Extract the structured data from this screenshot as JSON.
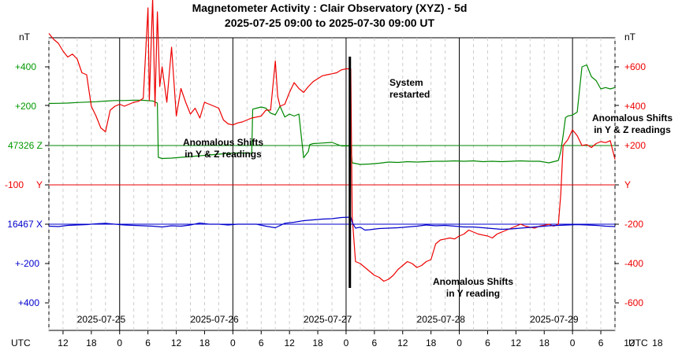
{
  "chart_data": {
    "type": "line",
    "title": "Magnetometer Activity : Clair Observatory (XYZ) - 5d",
    "subtitle": "2025-07-25 09:00 to 2025-07-30 09:00 UT",
    "x_start": "2025-07-25 09:00",
    "x_end": "2025-07-30 09:00",
    "left_unit": "nT",
    "right_unit": "nT",
    "utc_label": "UTC",
    "left_labels": [
      {
        "text": "+400",
        "color": "#009900"
      },
      {
        "text": "+200",
        "color": "#009900"
      },
      {
        "text": "47326 Z",
        "color": "#009900"
      },
      {
        "text": "-100",
        "color": "#ee0000"
      },
      {
        "text": "Y",
        "color": "#ee0000"
      },
      {
        "text": "16467 X",
        "color": "#0000cc"
      },
      {
        "text": "+-200",
        "color": "#0000cc"
      },
      {
        "text": "+400",
        "color": "#0000cc"
      }
    ],
    "right_labels": [
      {
        "text": "+600",
        "color": "#ee0000"
      },
      {
        "text": "+400",
        "color": "#ee0000"
      },
      {
        "text": "+200",
        "color": "#ee0000"
      },
      {
        "text": "Y",
        "color": "#ee0000"
      },
      {
        "text": "-200",
        "color": "#ee0000"
      },
      {
        "text": "-400",
        "color": "#ee0000"
      },
      {
        "text": "-600",
        "color": "#ee0000"
      }
    ],
    "hour_ticks": [
      "12",
      "18",
      "0",
      "6",
      "12",
      "18",
      "0",
      "6",
      "12",
      "18",
      "0",
      "6",
      "12",
      "18",
      "0",
      "6",
      "12",
      "18",
      "0",
      "6",
      "12",
      "18",
      "0",
      "6"
    ],
    "date_labels": [
      "2025-07-25",
      "2025-07-26",
      "2025-07-27",
      "2025-07-28",
      "2025-07-29"
    ],
    "colors": {
      "Z": "#008800",
      "Y": "#ee0000",
      "X": "#0000cc"
    },
    "grid": true,
    "annotations": [
      {
        "text": [
          "Anomalous Shifts",
          "in Y & Z readings"
        ]
      },
      {
        "text": [
          "System",
          "restarted"
        ]
      },
      {
        "text": [
          "Anomalous Shifts",
          "in Y reading"
        ]
      },
      {
        "text": [
          "Anomalous Shifts",
          "in Y & Z readings"
        ]
      }
    ],
    "series": [
      {
        "name": "Z",
        "color": "#008800",
        "points": [
          [
            0,
            214
          ],
          [
            2,
            215
          ],
          [
            4,
            216
          ],
          [
            6,
            219
          ],
          [
            8,
            221
          ],
          [
            10,
            223
          ],
          [
            12,
            226
          ],
          [
            14,
            229
          ],
          [
            16,
            229
          ],
          [
            18,
            231
          ],
          [
            20,
            230
          ],
          [
            22,
            227
          ],
          [
            23,
            216
          ],
          [
            23.2,
            -60
          ],
          [
            24,
            -66
          ],
          [
            26,
            -64
          ],
          [
            28,
            -60
          ],
          [
            30,
            -56
          ],
          [
            32,
            -52
          ],
          [
            34,
            -48
          ],
          [
            36,
            -44
          ],
          [
            38,
            -40
          ],
          [
            40,
            -38
          ],
          [
            42,
            -38
          ],
          [
            43,
            -40
          ],
          [
            43.2,
            185
          ],
          [
            44,
            190
          ],
          [
            45,
            196
          ],
          [
            46,
            190
          ],
          [
            47,
            165
          ],
          [
            48,
            156
          ],
          [
            49,
            200
          ],
          [
            50,
            145
          ],
          [
            51,
            160
          ],
          [
            52,
            150
          ],
          [
            53,
            160
          ],
          [
            54,
            -62
          ],
          [
            55,
            -30
          ],
          [
            55.3,
            5
          ],
          [
            56,
            10
          ],
          [
            58,
            13
          ],
          [
            60,
            16
          ],
          [
            62,
            -2
          ],
          [
            63,
            -2
          ],
          [
            64,
            -2
          ],
          [
            64.3,
            -88
          ],
          [
            66,
            -96
          ],
          [
            68,
            -94
          ],
          [
            70,
            -90
          ],
          [
            72,
            -84
          ],
          [
            74,
            -86
          ],
          [
            76,
            -82
          ],
          [
            78,
            -84
          ],
          [
            80,
            -82
          ],
          [
            82,
            -80
          ],
          [
            84,
            -80
          ],
          [
            86,
            -78
          ],
          [
            88,
            -80
          ],
          [
            90,
            -78
          ],
          [
            92,
            -82
          ],
          [
            94,
            -80
          ],
          [
            96,
            -82
          ],
          [
            98,
            -80
          ],
          [
            100,
            -78
          ],
          [
            102,
            -80
          ],
          [
            104,
            -80
          ],
          [
            106,
            -88
          ],
          [
            108,
            -76
          ],
          [
            108.5,
            -30
          ],
          [
            109,
            50
          ],
          [
            109.5,
            142
          ],
          [
            110,
            150
          ],
          [
            111,
            155
          ],
          [
            112,
            170
          ],
          [
            113,
            400
          ],
          [
            114,
            410
          ],
          [
            115,
            350
          ],
          [
            116,
            330
          ],
          [
            117,
            288
          ],
          [
            118,
            295
          ],
          [
            119,
            288
          ],
          [
            120,
            295
          ]
        ]
      },
      {
        "name": "Y",
        "color": "#ee0000",
        "points": [
          [
            0,
            770
          ],
          [
            1,
            740
          ],
          [
            2,
            720
          ],
          [
            3,
            680
          ],
          [
            4,
            650
          ],
          [
            5,
            665
          ],
          [
            6,
            640
          ],
          [
            7,
            570
          ],
          [
            8,
            560
          ],
          [
            9,
            400
          ],
          [
            10,
            350
          ],
          [
            11,
            290
          ],
          [
            12,
            270
          ],
          [
            13,
            380
          ],
          [
            14,
            400
          ],
          [
            15,
            410
          ],
          [
            16,
            400
          ],
          [
            17,
            410
          ],
          [
            18,
            420
          ],
          [
            19,
            425
          ],
          [
            20,
            440
          ],
          [
            21,
            900
          ],
          [
            21.3,
            430
          ],
          [
            22,
            950
          ],
          [
            22.5,
            400
          ],
          [
            23,
            880
          ],
          [
            23.5,
            500
          ],
          [
            24,
            600
          ],
          [
            25,
            420
          ],
          [
            26,
            700
          ],
          [
            27,
            350
          ],
          [
            28,
            490
          ],
          [
            29,
            420
          ],
          [
            30,
            360
          ],
          [
            31,
            390
          ],
          [
            32,
            340
          ],
          [
            33,
            420
          ],
          [
            34,
            410
          ],
          [
            35,
            400
          ],
          [
            36,
            390
          ],
          [
            37,
            330
          ],
          [
            38,
            310
          ],
          [
            39,
            305
          ],
          [
            40,
            315
          ],
          [
            41,
            320
          ],
          [
            42,
            330
          ],
          [
            43,
            340
          ],
          [
            44,
            345
          ],
          [
            45,
            350
          ],
          [
            46,
            380
          ],
          [
            47,
            380
          ],
          [
            48,
            630
          ],
          [
            48.5,
            450
          ],
          [
            49,
            400
          ],
          [
            50,
            410
          ],
          [
            51,
            470
          ],
          [
            52,
            520
          ],
          [
            53,
            490
          ],
          [
            54,
            470
          ],
          [
            55,
            500
          ],
          [
            56,
            525
          ],
          [
            57,
            540
          ],
          [
            58,
            555
          ],
          [
            59,
            560
          ],
          [
            60,
            565
          ],
          [
            61,
            570
          ],
          [
            62,
            585
          ],
          [
            63,
            590
          ],
          [
            64,
            590
          ],
          [
            64.3,
            -160
          ],
          [
            65,
            -390
          ],
          [
            66,
            -400
          ],
          [
            67,
            -420
          ],
          [
            68,
            -440
          ],
          [
            69,
            -460
          ],
          [
            70,
            -470
          ],
          [
            71,
            -490
          ],
          [
            72,
            -480
          ],
          [
            73,
            -460
          ],
          [
            74,
            -430
          ],
          [
            75,
            -410
          ],
          [
            76,
            -390
          ],
          [
            77,
            -400
          ],
          [
            78,
            -420
          ],
          [
            79,
            -410
          ],
          [
            80,
            -390
          ],
          [
            81,
            -380
          ],
          [
            82,
            -300
          ],
          [
            83,
            -280
          ],
          [
            84,
            -275
          ],
          [
            85,
            -270
          ],
          [
            86,
            -275
          ],
          [
            87,
            -260
          ],
          [
            88,
            -250
          ],
          [
            89,
            -230
          ],
          [
            90,
            -240
          ],
          [
            91,
            -250
          ],
          [
            92,
            -255
          ],
          [
            93,
            -260
          ],
          [
            94,
            -270
          ],
          [
            95,
            -250
          ],
          [
            96,
            -240
          ],
          [
            97,
            -230
          ],
          [
            98,
            -220
          ],
          [
            99,
            -210
          ],
          [
            100,
            -200
          ],
          [
            101,
            -210
          ],
          [
            102,
            -215
          ],
          [
            103,
            -220
          ],
          [
            104,
            -210
          ],
          [
            105,
            -205
          ],
          [
            106,
            -200
          ],
          [
            107,
            -210
          ],
          [
            108,
            -200
          ],
          [
            108.5,
            -50
          ],
          [
            109,
            200
          ],
          [
            110,
            230
          ],
          [
            111,
            280
          ],
          [
            112,
            250
          ],
          [
            113,
            200
          ],
          [
            114,
            205
          ],
          [
            115,
            190
          ],
          [
            116,
            210
          ],
          [
            117,
            220
          ],
          [
            118,
            215
          ],
          [
            119,
            225
          ],
          [
            120,
            130
          ]
        ]
      },
      {
        "name": "X",
        "color": "#0000cc",
        "points": [
          [
            0,
            -10
          ],
          [
            2,
            -12
          ],
          [
            4,
            -6
          ],
          [
            6,
            -4
          ],
          [
            8,
            -2
          ],
          [
            10,
            2
          ],
          [
            12,
            5
          ],
          [
            14,
            0
          ],
          [
            16,
            -4
          ],
          [
            18,
            -6
          ],
          [
            20,
            -8
          ],
          [
            22,
            -10
          ],
          [
            24,
            -14
          ],
          [
            26,
            -8
          ],
          [
            28,
            -10
          ],
          [
            30,
            -4
          ],
          [
            32,
            6
          ],
          [
            34,
            0
          ],
          [
            36,
            0
          ],
          [
            38,
            -4
          ],
          [
            40,
            0
          ],
          [
            42,
            0
          ],
          [
            44,
            0
          ],
          [
            46,
            -10
          ],
          [
            48,
            -18
          ],
          [
            50,
            5
          ],
          [
            52,
            10
          ],
          [
            54,
            18
          ],
          [
            56,
            22
          ],
          [
            58,
            26
          ],
          [
            60,
            28
          ],
          [
            62,
            34
          ],
          [
            64,
            36
          ],
          [
            64.3,
            10
          ],
          [
            65,
            -20
          ],
          [
            66,
            -15
          ],
          [
            67,
            -30
          ],
          [
            68,
            -28
          ],
          [
            70,
            -22
          ],
          [
            72,
            -20
          ],
          [
            74,
            -18
          ],
          [
            76,
            -14
          ],
          [
            78,
            -10
          ],
          [
            80,
            -4
          ],
          [
            82,
            -8
          ],
          [
            84,
            -6
          ],
          [
            86,
            -10
          ],
          [
            88,
            -14
          ],
          [
            90,
            -14
          ],
          [
            92,
            -18
          ],
          [
            94,
            -22
          ],
          [
            96,
            -26
          ],
          [
            98,
            -24
          ],
          [
            100,
            -20
          ],
          [
            102,
            -16
          ],
          [
            104,
            -12
          ],
          [
            106,
            -8
          ],
          [
            108,
            -6
          ],
          [
            110,
            -4
          ],
          [
            112,
            -2
          ],
          [
            114,
            -4
          ],
          [
            116,
            -6
          ],
          [
            118,
            -10
          ],
          [
            120,
            -12
          ]
        ]
      }
    ]
  }
}
